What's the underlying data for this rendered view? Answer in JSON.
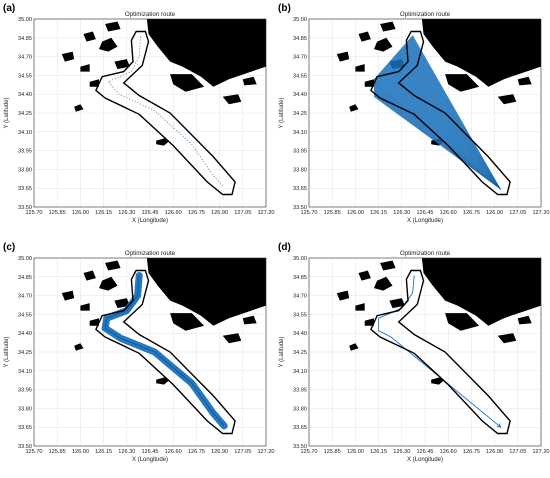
{
  "chart_data": [
    {
      "panel": "(a)",
      "type": "map",
      "title": "Optimization route",
      "xlabel": "X (Longitude)",
      "ylabel": "Y (Latitude)",
      "xlim": [
        125.7,
        127.2
      ],
      "ylim": [
        33.5,
        35.0
      ],
      "xticks": [
        "125.70",
        "125.85",
        "126.00",
        "126.15",
        "126.30",
        "126.45",
        "126.60",
        "126.75",
        "126.90",
        "127.05",
        "127.20"
      ],
      "yticks": [
        "33.50",
        "33.65",
        "33.80",
        "33.95",
        "34.10",
        "34.25",
        "34.40",
        "34.55",
        "34.70",
        "34.85",
        "35.00"
      ],
      "grid": true,
      "route_style": "dotted",
      "route": [
        [
          126.39,
          34.86
        ],
        [
          126.38,
          34.7
        ],
        [
          126.33,
          34.58
        ],
        [
          126.18,
          34.5
        ],
        [
          126.25,
          34.4
        ],
        [
          126.48,
          34.27
        ],
        [
          126.72,
          34.0
        ],
        [
          126.86,
          33.75
        ],
        [
          126.93,
          33.66
        ]
      ],
      "colors": {
        "land": "#000000",
        "route": "#1a72bd",
        "boundary": "#000000"
      }
    },
    {
      "panel": "(b)",
      "type": "map",
      "title": "Optimization route",
      "xlabel": "X (Longitude)",
      "ylabel": "Y (Latitude)",
      "xlim": [
        125.7,
        127.2
      ],
      "ylim": [
        33.5,
        35.0
      ],
      "xticks": [
        "125.70",
        "125.85",
        "126.00",
        "126.15",
        "126.30",
        "126.45",
        "126.60",
        "126.75",
        "126.90",
        "127.05",
        "127.20"
      ],
      "yticks": [
        "33.50",
        "33.65",
        "33.80",
        "33.95",
        "34.10",
        "34.25",
        "34.40",
        "34.55",
        "34.70",
        "34.85",
        "35.00"
      ],
      "grid": true,
      "route_style": "fan",
      "fan_apex": [
        126.94,
        33.64
      ],
      "fan_polygon": [
        [
          126.37,
          34.87
        ],
        [
          126.12,
          34.52
        ],
        [
          126.12,
          34.38
        ],
        [
          126.94,
          33.64
        ]
      ],
      "colors": {
        "land": "#000000",
        "route": "#1a72bd",
        "boundary": "#000000"
      }
    },
    {
      "panel": "(c)",
      "type": "map",
      "title": "Optimization route",
      "xlabel": "X (Longitude)",
      "ylabel": "Y (Latitude)",
      "xlim": [
        125.7,
        127.2
      ],
      "ylim": [
        33.5,
        35.0
      ],
      "xticks": [
        "125.70",
        "125.85",
        "126.00",
        "126.15",
        "126.30",
        "126.45",
        "126.60",
        "126.75",
        "126.90",
        "127.05",
        "127.20"
      ],
      "yticks": [
        "33.50",
        "33.65",
        "33.80",
        "33.95",
        "34.10",
        "34.25",
        "34.40",
        "34.55",
        "34.70",
        "34.85",
        "35.00"
      ],
      "grid": true,
      "route_style": "band",
      "route": [
        [
          126.38,
          34.86
        ],
        [
          126.37,
          34.7
        ],
        [
          126.3,
          34.58
        ],
        [
          126.17,
          34.52
        ],
        [
          126.16,
          34.44
        ],
        [
          126.26,
          34.36
        ],
        [
          126.48,
          34.25
        ],
        [
          126.72,
          34.0
        ],
        [
          126.86,
          33.76
        ],
        [
          126.93,
          33.66
        ]
      ],
      "colors": {
        "land": "#000000",
        "route": "#1a72bd",
        "boundary": "#000000"
      }
    },
    {
      "panel": "(d)",
      "type": "map",
      "title": "Optimization route",
      "xlabel": "X (Longitude)",
      "ylabel": "Y (Latitude)",
      "xlim": [
        125.7,
        127.2
      ],
      "ylim": [
        33.5,
        35.0
      ],
      "xticks": [
        "125.70",
        "125.85",
        "126.00",
        "126.15",
        "126.30",
        "126.45",
        "126.60",
        "126.75",
        "126.90",
        "127.05",
        "127.20"
      ],
      "yticks": [
        "33.50",
        "33.65",
        "33.80",
        "33.95",
        "34.10",
        "34.25",
        "34.40",
        "34.55",
        "34.70",
        "34.85",
        "35.00"
      ],
      "grid": true,
      "route_style": "line",
      "route": [
        [
          126.38,
          34.86
        ],
        [
          126.37,
          34.72
        ],
        [
          126.3,
          34.6
        ],
        [
          126.15,
          34.52
        ],
        [
          126.15,
          34.42
        ],
        [
          126.23,
          34.37
        ],
        [
          126.94,
          33.65
        ]
      ],
      "colors": {
        "land": "#000000",
        "route": "#1a72bd",
        "boundary": "#000000"
      }
    }
  ],
  "boundary": [
    [
      126.33,
      34.83
    ],
    [
      126.36,
      34.9
    ],
    [
      126.42,
      34.9
    ],
    [
      126.44,
      34.82
    ],
    [
      126.4,
      34.63
    ],
    [
      126.28,
      34.49
    ],
    [
      126.38,
      34.39
    ],
    [
      126.58,
      34.25
    ],
    [
      126.86,
      33.9
    ],
    [
      127.0,
      33.7
    ],
    [
      126.98,
      33.6
    ],
    [
      126.92,
      33.6
    ],
    [
      126.82,
      33.7
    ],
    [
      126.6,
      33.99
    ],
    [
      126.38,
      34.24
    ],
    [
      126.16,
      34.37
    ],
    [
      126.1,
      34.43
    ],
    [
      126.14,
      34.54
    ],
    [
      126.28,
      34.58
    ],
    [
      126.34,
      34.66
    ]
  ],
  "island": [
    [
      126.49,
      34.03
    ],
    [
      126.55,
      34.05
    ],
    [
      126.57,
      34.02
    ],
    [
      126.54,
      33.99
    ],
    [
      126.49,
      34.0
    ]
  ],
  "land": [
    [
      [
        126.43,
        35.0
      ],
      [
        127.2,
        35.0
      ],
      [
        127.2,
        34.62
      ],
      [
        126.96,
        34.52
      ],
      [
        126.86,
        34.46
      ],
      [
        126.78,
        34.54
      ],
      [
        126.66,
        34.62
      ],
      [
        126.58,
        34.66
      ],
      [
        126.5,
        34.78
      ],
      [
        126.44,
        34.88
      ]
    ],
    [
      [
        126.58,
        34.56
      ],
      [
        126.72,
        34.56
      ],
      [
        126.8,
        34.46
      ],
      [
        126.68,
        34.42
      ],
      [
        126.6,
        34.48
      ]
    ],
    [
      [
        126.14,
        34.82
      ],
      [
        126.2,
        34.85
      ],
      [
        126.24,
        34.78
      ],
      [
        126.18,
        34.74
      ],
      [
        126.12,
        34.76
      ]
    ],
    [
      [
        126.02,
        34.88
      ],
      [
        126.08,
        34.9
      ],
      [
        126.1,
        34.84
      ],
      [
        126.04,
        34.82
      ]
    ],
    [
      [
        125.88,
        34.72
      ],
      [
        125.95,
        34.74
      ],
      [
        125.96,
        34.68
      ],
      [
        125.9,
        34.66
      ]
    ],
    [
      [
        126.22,
        34.66
      ],
      [
        126.3,
        34.68
      ],
      [
        126.32,
        34.62
      ],
      [
        126.24,
        34.6
      ]
    ],
    [
      [
        126.06,
        34.5
      ],
      [
        126.12,
        34.52
      ],
      [
        126.12,
        34.46
      ],
      [
        126.06,
        34.46
      ]
    ],
    [
      [
        126.0,
        34.62
      ],
      [
        126.06,
        34.64
      ],
      [
        126.06,
        34.58
      ],
      [
        126.0,
        34.58
      ]
    ],
    [
      [
        126.92,
        34.38
      ],
      [
        127.02,
        34.4
      ],
      [
        127.04,
        34.34
      ],
      [
        126.96,
        34.32
      ]
    ],
    [
      [
        125.96,
        34.3
      ],
      [
        126.0,
        34.32
      ],
      [
        126.02,
        34.28
      ],
      [
        125.97,
        34.26
      ]
    ],
    [
      [
        126.16,
        34.96
      ],
      [
        126.24,
        34.98
      ],
      [
        126.26,
        34.92
      ],
      [
        126.18,
        34.9
      ]
    ],
    [
      [
        127.05,
        34.52
      ],
      [
        127.12,
        34.54
      ],
      [
        127.14,
        34.48
      ],
      [
        127.06,
        34.47
      ]
    ]
  ]
}
